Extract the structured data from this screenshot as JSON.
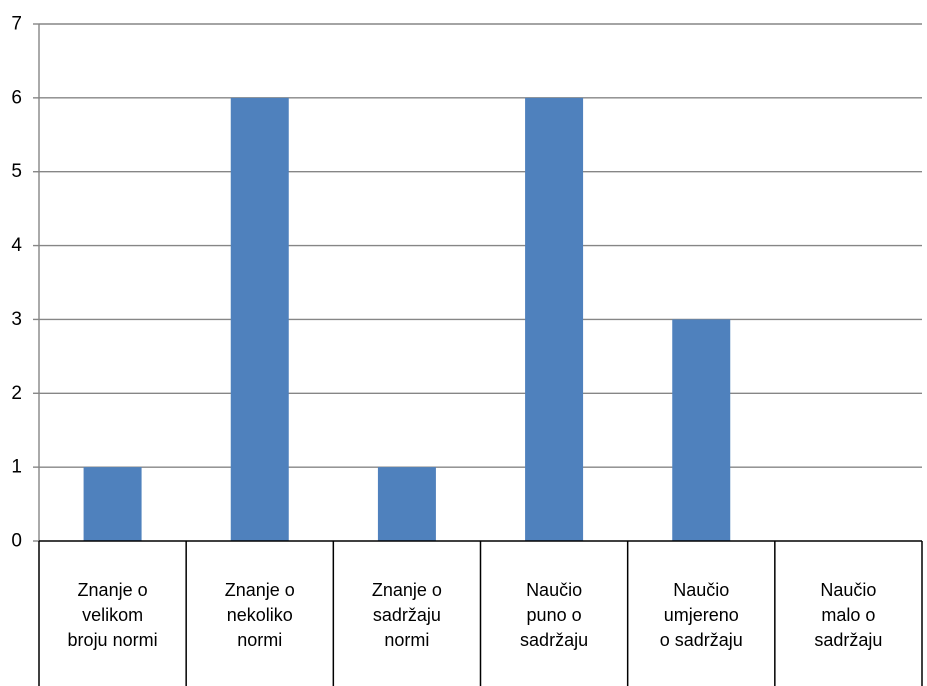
{
  "chart_data": {
    "type": "bar",
    "categories": [
      [
        "Znanje o",
        "velikom",
        "broju normi"
      ],
      [
        "Znanje o",
        "nekoliko",
        "normi"
      ],
      [
        "Znanje o",
        "sadržaju",
        "normi"
      ],
      [
        "Naučio",
        "puno o",
        "sadržaju"
      ],
      [
        "Naučio",
        "umjereno",
        "o sadržaju"
      ],
      [
        "Naučio",
        "malo o",
        "sadržaju"
      ]
    ],
    "values": [
      1,
      6,
      1,
      6,
      3,
      0
    ],
    "title": "",
    "xlabel": "",
    "ylabel": "",
    "ylim": [
      0,
      7
    ],
    "yticks": [
      0,
      1,
      2,
      3,
      4,
      5,
      6,
      7
    ],
    "grid": true,
    "legend": "none",
    "bar_color": "#4F81BD",
    "grid_color": "#868686"
  }
}
